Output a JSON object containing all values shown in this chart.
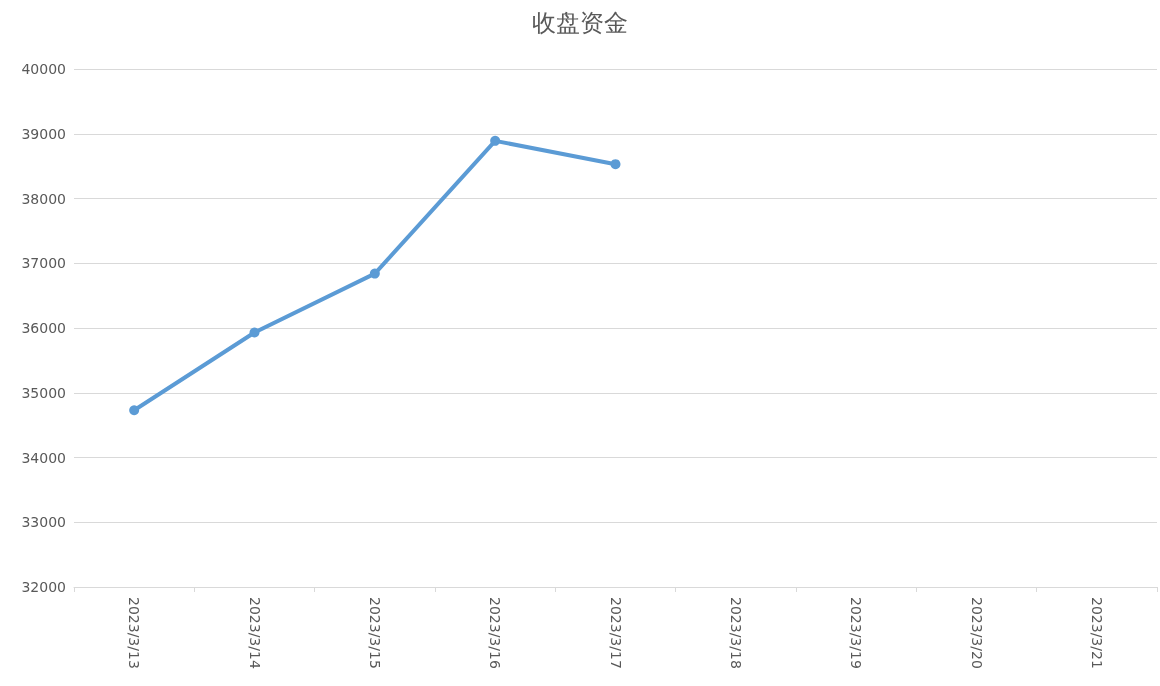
{
  "chart_data": {
    "type": "line",
    "title": "收盘资金",
    "categories": [
      "2023/3/13",
      "2023/3/14",
      "2023/3/15",
      "2023/3/16",
      "2023/3/17",
      "2023/3/18",
      "2023/3/19",
      "2023/3/20",
      "2023/3/21"
    ],
    "series": [
      {
        "color": "#5b9bd5",
        "values": [
          34730,
          35930,
          36840,
          38890,
          38530,
          null,
          null,
          null,
          null
        ]
      }
    ],
    "ylim": [
      32000,
      40000
    ],
    "yticks": [
      32000,
      33000,
      34000,
      35000,
      36000,
      37000,
      38000,
      39000,
      40000
    ],
    "grid": "y",
    "marker": "circle",
    "line_style": "solid"
  }
}
